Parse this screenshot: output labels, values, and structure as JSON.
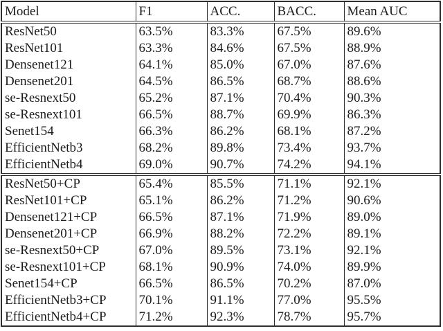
{
  "page": {
    "background": "#ffffff",
    "text_color": "#1c1c1c",
    "rule_color": "#2e2e2e"
  },
  "table": {
    "columns": [
      "Model",
      "F1",
      "ACC.",
      "BACC.",
      "Mean AUC"
    ],
    "groups": [
      {
        "name": "baseline-models",
        "rows": [
          [
            "ResNet50",
            "63.5%",
            "83.3%",
            "67.5%",
            "89.6%"
          ],
          [
            "ResNet101",
            "63.3%",
            "84.6%",
            "67.5%",
            "88.9%"
          ],
          [
            "Densenet121",
            "64.1%",
            "85.0%",
            "67.0%",
            "87.6%"
          ],
          [
            "Densenet201",
            "64.5%",
            "86.5%",
            "68.7%",
            "88.6%"
          ],
          [
            "se-Resnext50",
            "65.2%",
            "87.1%",
            "70.4%",
            "90.3%"
          ],
          [
            "se-Resnext101",
            "66.5%",
            "88.7%",
            "69.9%",
            "86.3%"
          ],
          [
            "Senet154",
            "66.3%",
            "86.2%",
            "68.1%",
            "87.2%"
          ],
          [
            "EfficientNetb3",
            "68.2%",
            "89.8%",
            "73.4%",
            "93.7%"
          ],
          [
            "EfficientNetb4",
            "69.0%",
            "90.7%",
            "74.2%",
            "94.1%"
          ]
        ]
      },
      {
        "name": "cp-models",
        "rows": [
          [
            "ResNet50+CP",
            "65.4%",
            "85.5%",
            "71.1%",
            "92.1%"
          ],
          [
            "ResNet101+CP",
            "65.1%",
            "86.2%",
            "71.2%",
            "90.6%"
          ],
          [
            "Densenet121+CP",
            "66.5%",
            "87.1%",
            "71.9%",
            "89.0%"
          ],
          [
            "Densenet201+CP",
            "66.9%",
            "88.2%",
            "72.2%",
            "89.1%"
          ],
          [
            "se-Resnext50+CP",
            "67.0%",
            "89.5%",
            "73.1%",
            "92.1%"
          ],
          [
            "se-Resnext101+CP",
            "68.1%",
            "90.9%",
            "74.0%",
            "89.9%"
          ],
          [
            "Senet154+CP",
            "66.5%",
            "86.5%",
            "70.2%",
            "87.0%"
          ],
          [
            "EfficientNetb3+CP",
            "70.1%",
            "91.1%",
            "77.0%",
            "95.5%"
          ],
          [
            "EfficientNetb4+CP",
            "71.2%",
            "92.3%",
            "78.7%",
            "95.7%"
          ]
        ]
      }
    ]
  }
}
